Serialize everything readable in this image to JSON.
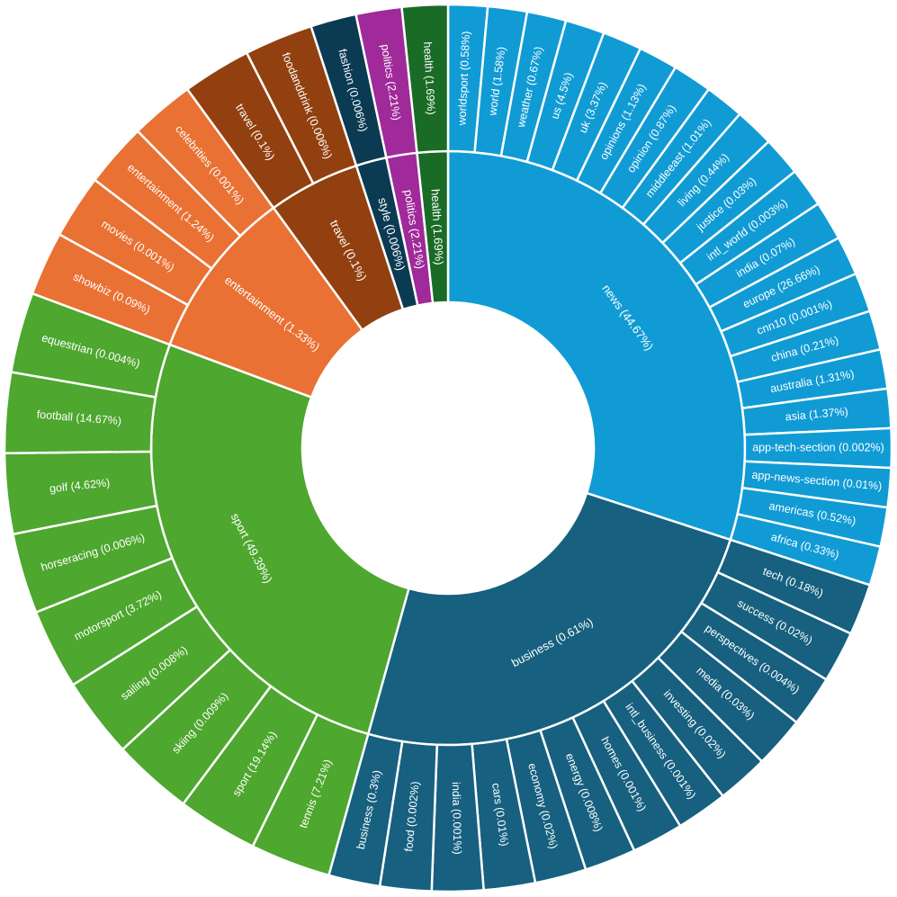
{
  "chart_data": {
    "type": "sunburst",
    "inner_ring": [
      {
        "name": "news",
        "label": "news (44.67%)",
        "value": 90.0,
        "color": "#119bd5"
      },
      {
        "name": "business",
        "label": "business (0.61%)",
        "value": 73.0,
        "color": "#17607f"
      },
      {
        "name": "sport",
        "label": "sport (49.39%)",
        "value": 79.0,
        "color": "#4ea72e"
      },
      {
        "name": "entertainment",
        "label": "entertainment (1.33%)",
        "value": 28.0,
        "color": "#e97133"
      },
      {
        "name": "travel",
        "label": "travel (0.1%)",
        "value": 15.0,
        "color": "#92400f"
      },
      {
        "name": "style",
        "label": "style (0.006%)",
        "value": 5.0,
        "color": "#0b3b53"
      },
      {
        "name": "politics",
        "label": "politics (2.21%)",
        "value": 5.0,
        "color": "#a02a99"
      },
      {
        "name": "health",
        "label": "health (1.69%)",
        "value": 5.0,
        "color": "#1a6b26"
      }
    ],
    "outer_ring": [
      {
        "label": "worldsport (0.58%)",
        "parent": "news",
        "value": 1
      },
      {
        "label": "world (1.58%)",
        "parent": "news",
        "value": 1
      },
      {
        "label": "weather (0.67%)",
        "parent": "news",
        "value": 1
      },
      {
        "label": "us (4.5%)",
        "parent": "news",
        "value": 1
      },
      {
        "label": "uk (3.37%)",
        "parent": "news",
        "value": 1
      },
      {
        "label": "opinions (1.13%)",
        "parent": "news",
        "value": 1
      },
      {
        "label": "opinion (0.87%)",
        "parent": "news",
        "value": 1
      },
      {
        "label": "middleeast (1.01%)",
        "parent": "news",
        "value": 1
      },
      {
        "label": "living (0.44%)",
        "parent": "news",
        "value": 1
      },
      {
        "label": "justice (0.03%)",
        "parent": "news",
        "value": 1
      },
      {
        "label": "intl_world (0.003%)",
        "parent": "news",
        "value": 1
      },
      {
        "label": "india (0.07%)",
        "parent": "news",
        "value": 1
      },
      {
        "label": "europe (26.66%)",
        "parent": "news",
        "value": 1
      },
      {
        "label": "cnn10 (0.001%)",
        "parent": "news",
        "value": 1
      },
      {
        "label": "china (0.21%)",
        "parent": "news",
        "value": 1
      },
      {
        "label": "australia (1.31%)",
        "parent": "news",
        "value": 1
      },
      {
        "label": "asia (1.37%)",
        "parent": "news",
        "value": 1
      },
      {
        "label": "app-tech-section (0.002%)",
        "parent": "news",
        "value": 1
      },
      {
        "label": "app-news-section (0.01%)",
        "parent": "news",
        "value": 1
      },
      {
        "label": "americas (0.52%)",
        "parent": "news",
        "value": 1
      },
      {
        "label": "africa (0.33%)",
        "parent": "news",
        "value": 1
      },
      {
        "label": "tech (0.18%)",
        "parent": "business",
        "value": 1
      },
      {
        "label": "success (0.02%)",
        "parent": "business",
        "value": 1
      },
      {
        "label": "perspectives (0.004%)",
        "parent": "business",
        "value": 1
      },
      {
        "label": "media (0.03%)",
        "parent": "business",
        "value": 1
      },
      {
        "label": "investing (0.02%)",
        "parent": "business",
        "value": 1
      },
      {
        "label": "intl_business (0.001%)",
        "parent": "business",
        "value": 1
      },
      {
        "label": "homes (0.001%)",
        "parent": "business",
        "value": 1
      },
      {
        "label": "energy (0.008%)",
        "parent": "business",
        "value": 1
      },
      {
        "label": "economy (0.02%)",
        "parent": "business",
        "value": 1
      },
      {
        "label": "cars (0.01%)",
        "parent": "business",
        "value": 1
      },
      {
        "label": "india (0.001%)",
        "parent": "business",
        "value": 1
      },
      {
        "label": "food (0.002%)",
        "parent": "business",
        "value": 1
      },
      {
        "label": "business (0.3%)",
        "parent": "business",
        "value": 1
      },
      {
        "label": "tennis (7.21%)",
        "parent": "sport",
        "value": 1
      },
      {
        "label": "sport (19.14%)",
        "parent": "sport",
        "value": 1
      },
      {
        "label": "skiing (0.009%)",
        "parent": "sport",
        "value": 1
      },
      {
        "label": "sailing (0.008%)",
        "parent": "sport",
        "value": 1
      },
      {
        "label": "motorsport (3.72%)",
        "parent": "sport",
        "value": 1
      },
      {
        "label": "horseracing (0.006%)",
        "parent": "sport",
        "value": 1
      },
      {
        "label": "golf (4.62%)",
        "parent": "sport",
        "value": 1
      },
      {
        "label": "football (14.67%)",
        "parent": "sport",
        "value": 1
      },
      {
        "label": "equestrian (0.004%)",
        "parent": "sport",
        "value": 1
      },
      {
        "label": "showbiz (0.09%)",
        "parent": "entertainment",
        "value": 1
      },
      {
        "label": "movies (0.001%)",
        "parent": "entertainment",
        "value": 1
      },
      {
        "label": "entertainment (1.24%)",
        "parent": "entertainment",
        "value": 1
      },
      {
        "label": "celebrities (0.001%)",
        "parent": "entertainment",
        "value": 1
      },
      {
        "label": "travel (0.1%)",
        "parent": "travel",
        "value": 1
      },
      {
        "label": "foodanddrink (0.006%)",
        "parent": "travel",
        "value": 1
      },
      {
        "label": "fashion (0.006%)",
        "parent": "style",
        "value": 1
      },
      {
        "label": "politics (2.21%)",
        "parent": "politics",
        "value": 1
      },
      {
        "label": "health (1.69%)",
        "parent": "health",
        "value": 1
      }
    ]
  }
}
